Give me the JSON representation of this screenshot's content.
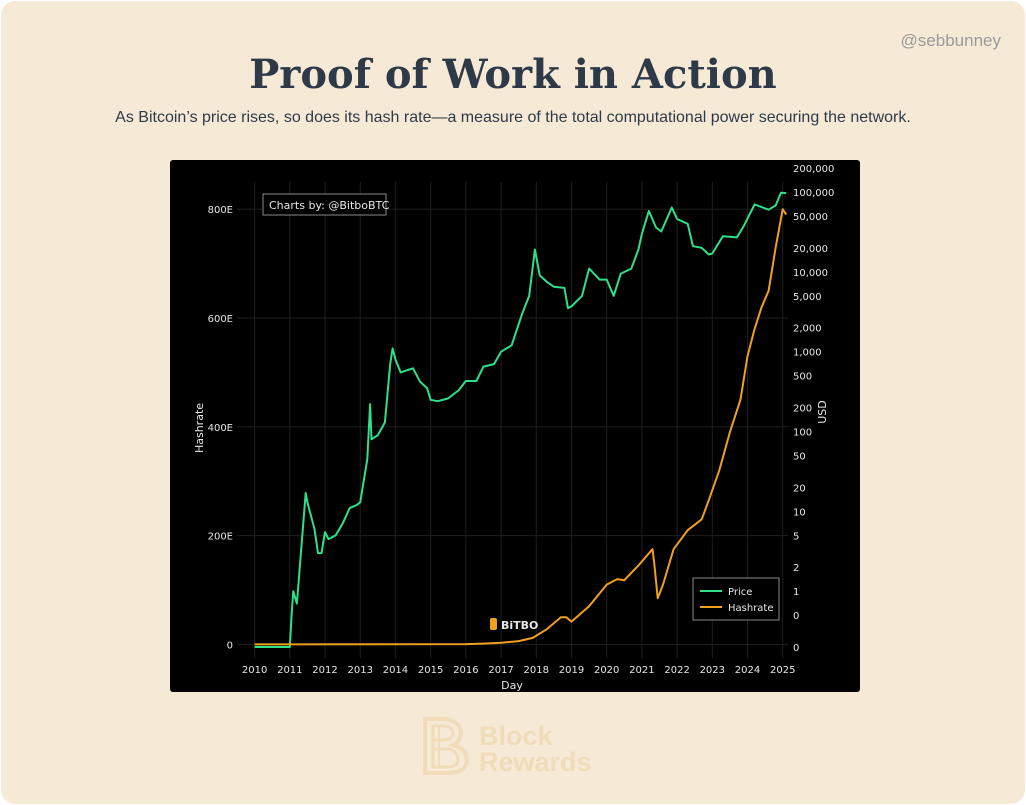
{
  "header": {
    "handle": "@sebbunney",
    "title": "Proof of Work in Action",
    "subtitle": "As Bitcoin’s price rises, so does its hash rate—a measure of the total computational power securing the network."
  },
  "footer": {
    "logo_line1": "Block",
    "logo_line2": "Rewards"
  },
  "chart_data": {
    "type": "line",
    "credit": "Charts by: @BitboBTC",
    "watermark": "BiTBO",
    "xlabel": "Day",
    "ylabel": "Hashrate",
    "y2label": "USD",
    "xlim": [
      2009.5,
      2025.15
    ],
    "x_ticks": [
      "2010",
      "2011",
      "2012",
      "2013",
      "2014",
      "2015",
      "2016",
      "2017",
      "2018",
      "2019",
      "2020",
      "2021",
      "2022",
      "2023",
      "2024",
      "2025"
    ],
    "ylim": [
      -25,
      850
    ],
    "y_ticks": [
      {
        "value": 0,
        "label": "0"
      },
      {
        "value": 200,
        "label": "200E"
      },
      {
        "value": 400,
        "label": "400E"
      },
      {
        "value": 600,
        "label": "600E"
      },
      {
        "value": 800,
        "label": "800E"
      }
    ],
    "y2_scale": "log",
    "y2_ticks": [
      {
        "value": 200000,
        "label": "200,000"
      },
      {
        "value": 100000,
        "label": "100,000"
      },
      {
        "value": 50000,
        "label": "50,000"
      },
      {
        "value": 20000,
        "label": "20,000"
      },
      {
        "value": 10000,
        "label": "10,000"
      },
      {
        "value": 5000,
        "label": "5,000"
      },
      {
        "value": 2000,
        "label": "2,000"
      },
      {
        "value": 1000,
        "label": "1,000"
      },
      {
        "value": 500,
        "label": "500"
      },
      {
        "value": 200,
        "label": "200"
      },
      {
        "value": 100,
        "label": "100"
      },
      {
        "value": 50,
        "label": "50"
      },
      {
        "value": 20,
        "label": "20"
      },
      {
        "value": 10,
        "label": "10"
      },
      {
        "value": 5,
        "label": "5"
      },
      {
        "value": 2,
        "label": "2"
      },
      {
        "value": 1,
        "label": "1"
      },
      {
        "value": 0.5,
        "label": "0"
      },
      {
        "value": 0.2,
        "label": "0"
      }
    ],
    "grid": true,
    "legend_position": "bottom-right",
    "series": [
      {
        "name": "Price",
        "axis": "right",
        "color": "#2fe08a",
        "points": [
          [
            2010.0,
            0.2
          ],
          [
            2011.0,
            0.2
          ],
          [
            2011.05,
            0.5
          ],
          [
            2011.1,
            1
          ],
          [
            2011.2,
            0.7
          ],
          [
            2011.3,
            2.5
          ],
          [
            2011.45,
            17
          ],
          [
            2011.5,
            13
          ],
          [
            2011.7,
            6
          ],
          [
            2011.8,
            3
          ],
          [
            2011.9,
            3
          ],
          [
            2012.0,
            5.5
          ],
          [
            2012.1,
            4.5
          ],
          [
            2012.3,
            5
          ],
          [
            2012.5,
            7
          ],
          [
            2012.7,
            11
          ],
          [
            2012.9,
            12
          ],
          [
            2013.0,
            13
          ],
          [
            2013.2,
            45
          ],
          [
            2013.28,
            220
          ],
          [
            2013.32,
            80
          ],
          [
            2013.5,
            90
          ],
          [
            2013.7,
            130
          ],
          [
            2013.85,
            700
          ],
          [
            2013.92,
            1100
          ],
          [
            2014.0,
            800
          ],
          [
            2014.15,
            550
          ],
          [
            2014.3,
            580
          ],
          [
            2014.5,
            620
          ],
          [
            2014.7,
            420
          ],
          [
            2014.9,
            350
          ],
          [
            2015.0,
            250
          ],
          [
            2015.2,
            240
          ],
          [
            2015.5,
            260
          ],
          [
            2015.8,
            330
          ],
          [
            2016.0,
            430
          ],
          [
            2016.3,
            430
          ],
          [
            2016.5,
            650
          ],
          [
            2016.8,
            700
          ],
          [
            2017.0,
            1000
          ],
          [
            2017.3,
            1200
          ],
          [
            2017.6,
            3000
          ],
          [
            2017.8,
            5000
          ],
          [
            2017.96,
            19000
          ],
          [
            2018.1,
            9000
          ],
          [
            2018.3,
            7500
          ],
          [
            2018.5,
            6500
          ],
          [
            2018.8,
            6300
          ],
          [
            2018.9,
            3500
          ],
          [
            2019.0,
            3700
          ],
          [
            2019.3,
            5000
          ],
          [
            2019.5,
            11000
          ],
          [
            2019.8,
            8000
          ],
          [
            2020.0,
            8000
          ],
          [
            2020.2,
            5000
          ],
          [
            2020.4,
            9500
          ],
          [
            2020.7,
            11000
          ],
          [
            2020.9,
            19000
          ],
          [
            2021.0,
            30000
          ],
          [
            2021.2,
            58000
          ],
          [
            2021.4,
            36000
          ],
          [
            2021.55,
            32000
          ],
          [
            2021.85,
            64000
          ],
          [
            2022.0,
            46000
          ],
          [
            2022.3,
            40000
          ],
          [
            2022.45,
            21000
          ],
          [
            2022.7,
            20000
          ],
          [
            2022.9,
            16500
          ],
          [
            2023.0,
            17000
          ],
          [
            2023.3,
            28000
          ],
          [
            2023.7,
            27000
          ],
          [
            2023.9,
            38000
          ],
          [
            2024.2,
            70000
          ],
          [
            2024.6,
            60000
          ],
          [
            2024.8,
            68000
          ],
          [
            2024.95,
            98000
          ],
          [
            2025.1,
            97000
          ]
        ]
      },
      {
        "name": "Hashrate",
        "axis": "left",
        "color": "#f0a020",
        "points": [
          [
            2010.0,
            0
          ],
          [
            2016.0,
            0.5
          ],
          [
            2016.5,
            1.5
          ],
          [
            2017.0,
            3
          ],
          [
            2017.5,
            6
          ],
          [
            2017.9,
            12
          ],
          [
            2018.3,
            28
          ],
          [
            2018.7,
            50
          ],
          [
            2018.85,
            50
          ],
          [
            2019.0,
            42
          ],
          [
            2019.5,
            70
          ],
          [
            2020.0,
            110
          ],
          [
            2020.3,
            120
          ],
          [
            2020.5,
            118
          ],
          [
            2020.9,
            145
          ],
          [
            2021.3,
            175
          ],
          [
            2021.35,
            150
          ],
          [
            2021.45,
            85
          ],
          [
            2021.6,
            110
          ],
          [
            2021.9,
            175
          ],
          [
            2022.3,
            210
          ],
          [
            2022.7,
            230
          ],
          [
            2022.9,
            265
          ],
          [
            2023.2,
            320
          ],
          [
            2023.5,
            390
          ],
          [
            2023.8,
            450
          ],
          [
            2024.0,
            530
          ],
          [
            2024.2,
            580
          ],
          [
            2024.4,
            620
          ],
          [
            2024.6,
            650
          ],
          [
            2024.8,
            730
          ],
          [
            2025.0,
            800
          ],
          [
            2025.1,
            790
          ]
        ]
      }
    ]
  }
}
